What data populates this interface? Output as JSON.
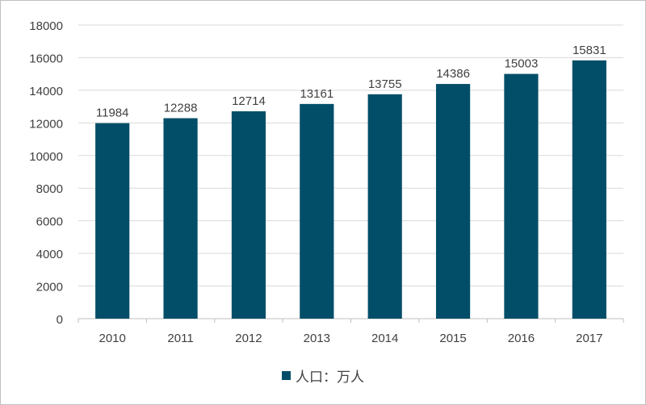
{
  "chart_data": {
    "type": "bar",
    "categories": [
      "2010",
      "2011",
      "2012",
      "2013",
      "2014",
      "2015",
      "2016",
      "2017"
    ],
    "series": [
      {
        "name": "人口：万人",
        "values": [
          11984,
          12288,
          12714,
          13161,
          13755,
          14386,
          15003,
          15831
        ],
        "color": "#024e68"
      }
    ],
    "ylim": [
      0,
      18000
    ],
    "yticks": [
      0,
      2000,
      4000,
      6000,
      8000,
      10000,
      12000,
      14000,
      16000,
      18000
    ],
    "grid": true,
    "data_labels": true,
    "legend_position": "bottom",
    "title": "",
    "xlabel": "",
    "ylabel": ""
  }
}
